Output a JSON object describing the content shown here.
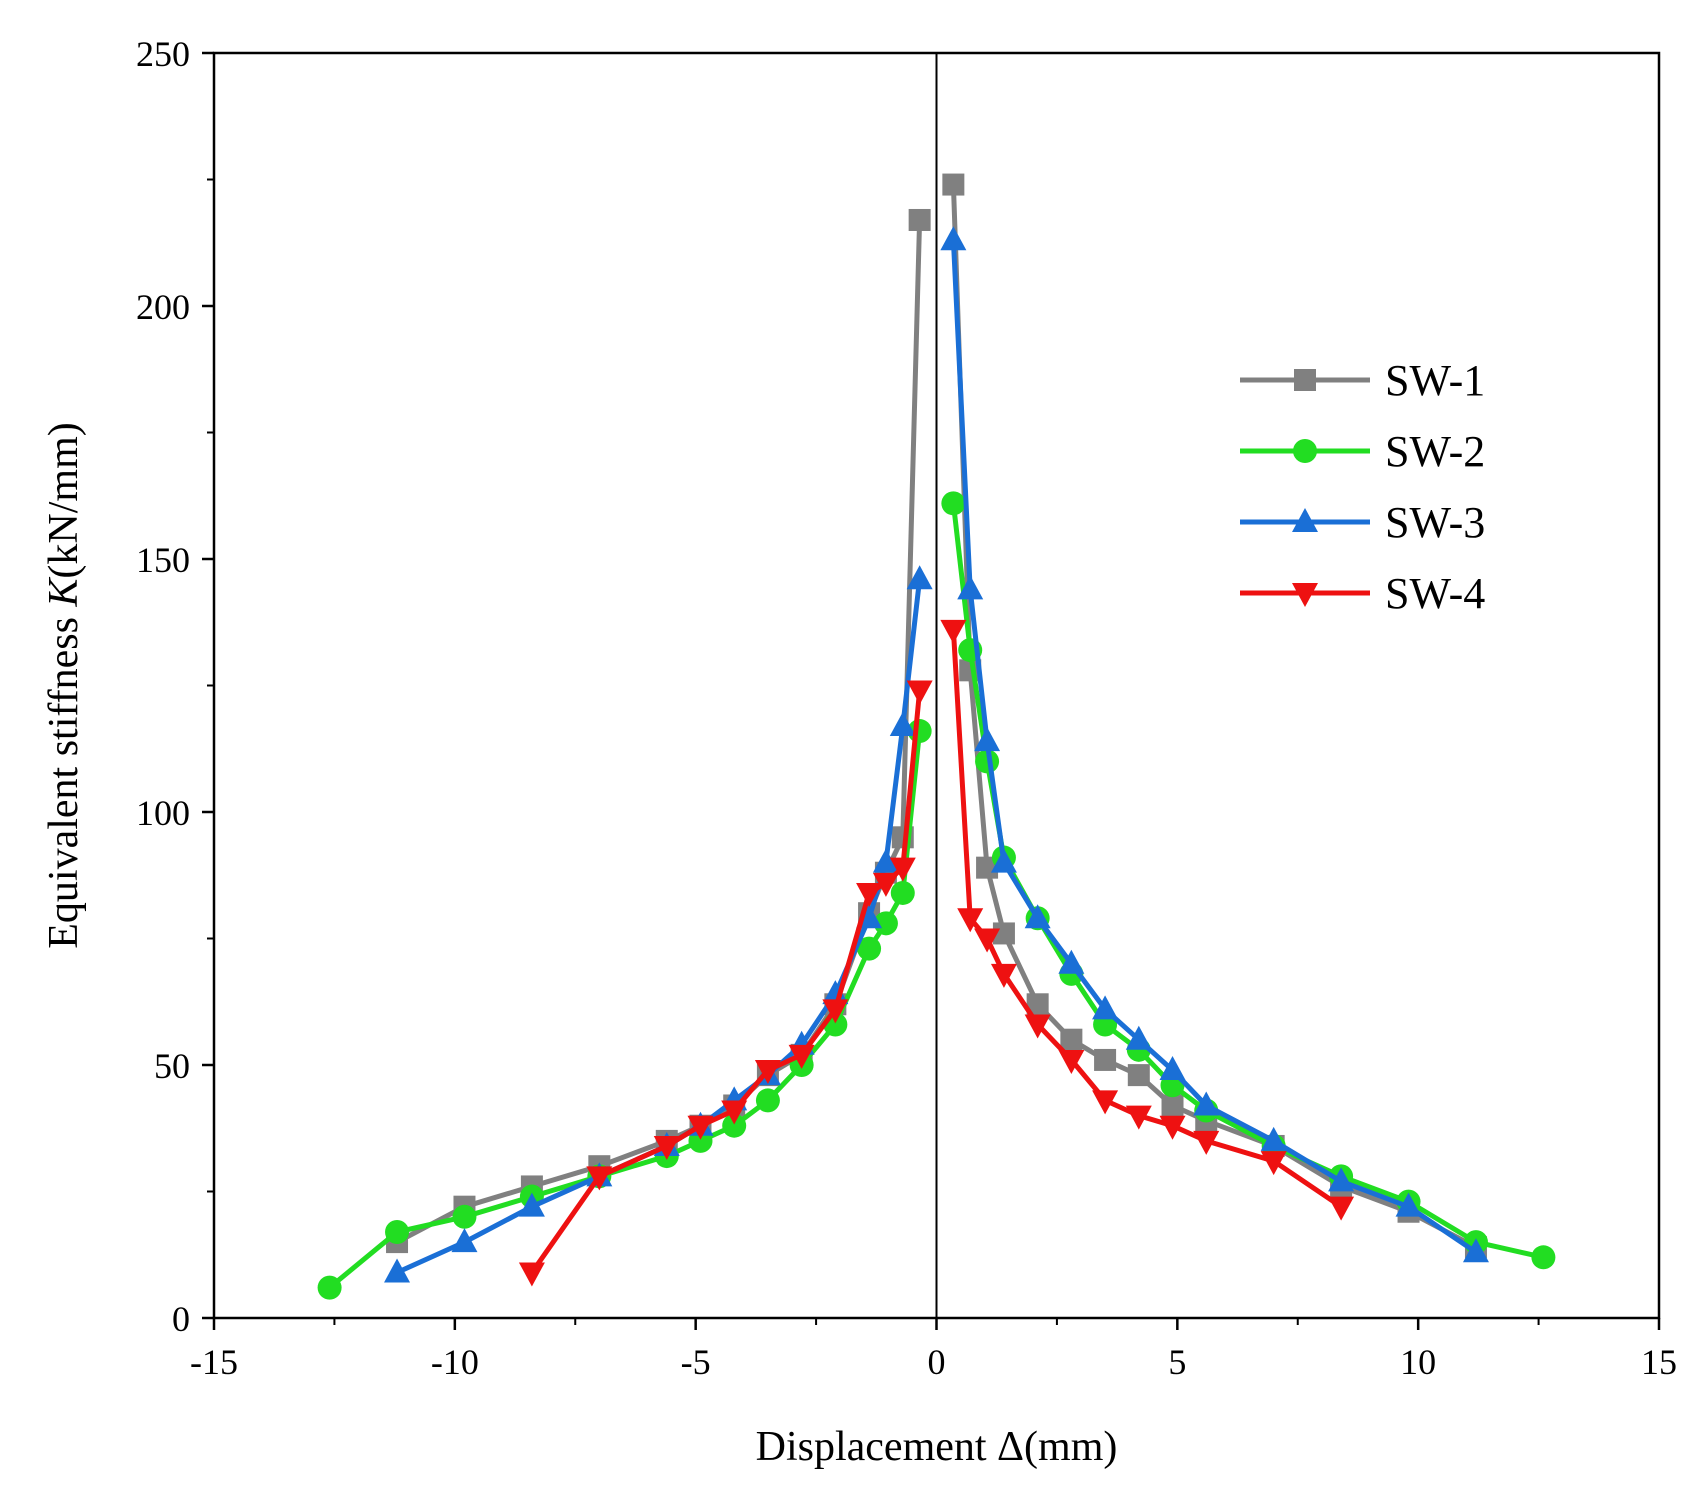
{
  "chart_data": {
    "type": "line",
    "xlabel": "Displacement Δ(mm)",
    "ylabel_main": "Equivalent stiffness ",
    "ylabel_italic": "K",
    "ylabel_unit": "(kN/mm)",
    "xlim": [
      -15,
      15
    ],
    "ylim": [
      0,
      250
    ],
    "xticks": [
      -15,
      -10,
      -5,
      0,
      5,
      10,
      15
    ],
    "yticks": [
      0,
      50,
      100,
      150,
      200,
      250
    ],
    "grid": false,
    "legend_position": "right",
    "series": [
      {
        "name": "SW-1",
        "color": "#808080",
        "marker": "square",
        "negative": [
          [
            -11.2,
            15
          ],
          [
            -9.8,
            22
          ],
          [
            -8.4,
            26
          ],
          [
            -7.0,
            30
          ],
          [
            -5.6,
            35
          ],
          [
            -4.9,
            38
          ],
          [
            -4.2,
            42
          ],
          [
            -3.5,
            48
          ],
          [
            -2.8,
            52
          ],
          [
            -2.1,
            62
          ],
          [
            -1.4,
            80
          ],
          [
            -1.05,
            88
          ],
          [
            -0.7,
            95
          ],
          [
            -0.35,
            217
          ]
        ],
        "positive": [
          [
            0.35,
            224
          ],
          [
            0.7,
            128
          ],
          [
            1.05,
            89
          ],
          [
            1.4,
            76
          ],
          [
            2.1,
            62
          ],
          [
            2.8,
            55
          ],
          [
            3.5,
            51
          ],
          [
            4.2,
            48
          ],
          [
            4.9,
            42
          ],
          [
            5.6,
            39
          ],
          [
            7.0,
            34
          ],
          [
            8.4,
            26
          ],
          [
            9.8,
            21
          ],
          [
            11.2,
            14
          ]
        ]
      },
      {
        "name": "SW-2",
        "color": "#22dd22",
        "marker": "circle",
        "negative": [
          [
            -12.6,
            6
          ],
          [
            -11.2,
            17
          ],
          [
            -9.8,
            20
          ],
          [
            -8.4,
            24
          ],
          [
            -7.0,
            28
          ],
          [
            -5.6,
            32
          ],
          [
            -4.9,
            35
          ],
          [
            -4.2,
            38
          ],
          [
            -3.5,
            43
          ],
          [
            -2.8,
            50
          ],
          [
            -2.1,
            58
          ],
          [
            -1.4,
            73
          ],
          [
            -1.05,
            78
          ],
          [
            -0.7,
            84
          ],
          [
            -0.35,
            116
          ]
        ],
        "positive": [
          [
            0.35,
            161
          ],
          [
            0.7,
            132
          ],
          [
            1.05,
            110
          ],
          [
            1.4,
            91
          ],
          [
            2.1,
            79
          ],
          [
            2.8,
            68
          ],
          [
            3.5,
            58
          ],
          [
            4.2,
            53
          ],
          [
            4.9,
            46
          ],
          [
            5.6,
            41
          ],
          [
            7.0,
            34
          ],
          [
            8.4,
            28
          ],
          [
            9.8,
            23
          ],
          [
            11.2,
            15
          ],
          [
            12.6,
            12
          ]
        ]
      },
      {
        "name": "SW-3",
        "color": "#1a6fd6",
        "marker": "triangle-up",
        "negative": [
          [
            -11.2,
            9
          ],
          [
            -9.8,
            15
          ],
          [
            -8.4,
            22
          ],
          [
            -7.0,
            28
          ],
          [
            -5.6,
            34
          ],
          [
            -4.9,
            38
          ],
          [
            -4.2,
            43
          ],
          [
            -3.5,
            48
          ],
          [
            -2.8,
            54
          ],
          [
            -2.1,
            64
          ],
          [
            -1.4,
            79
          ],
          [
            -1.05,
            90
          ],
          [
            -0.7,
            117
          ],
          [
            -0.35,
            146
          ]
        ],
        "positive": [
          [
            0.35,
            213
          ],
          [
            0.7,
            144
          ],
          [
            1.05,
            114
          ],
          [
            1.4,
            90
          ],
          [
            2.1,
            79
          ],
          [
            2.8,
            70
          ],
          [
            3.5,
            61
          ],
          [
            4.2,
            55
          ],
          [
            4.9,
            49
          ],
          [
            5.6,
            42
          ],
          [
            7.0,
            35
          ],
          [
            8.4,
            27
          ],
          [
            9.8,
            22
          ],
          [
            11.2,
            13
          ]
        ]
      },
      {
        "name": "SW-4",
        "color": "#ee1111",
        "marker": "triangle-down",
        "negative": [
          [
            -8.4,
            9
          ],
          [
            -7.0,
            28
          ],
          [
            -5.6,
            34
          ],
          [
            -4.9,
            38
          ],
          [
            -4.2,
            41
          ],
          [
            -3.5,
            49
          ],
          [
            -2.8,
            52
          ],
          [
            -2.1,
            61
          ],
          [
            -1.4,
            84
          ],
          [
            -1.05,
            86
          ],
          [
            -0.7,
            89
          ],
          [
            -0.35,
            124
          ]
        ],
        "positive": [
          [
            0.35,
            136
          ],
          [
            0.7,
            79
          ],
          [
            1.05,
            75
          ],
          [
            1.4,
            68
          ],
          [
            2.1,
            58
          ],
          [
            2.8,
            51
          ],
          [
            3.5,
            43
          ],
          [
            4.2,
            40
          ],
          [
            4.9,
            38
          ],
          [
            5.6,
            35
          ],
          [
            7.0,
            31
          ],
          [
            8.4,
            22
          ]
        ]
      }
    ]
  }
}
